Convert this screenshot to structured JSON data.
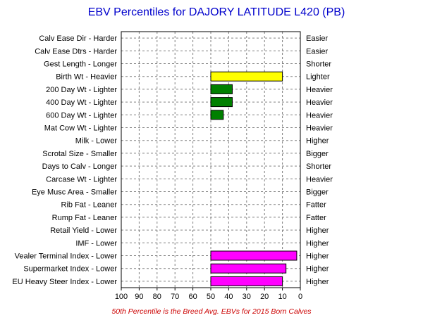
{
  "chart_data": {
    "type": "bar",
    "title": "EBV Percentiles for DAJORY LATITUDE L420 (PB)",
    "footnote": "50th Percentile is the Breed Avg. EBVs for 2015 Born Calves",
    "xlim": [
      100,
      0
    ],
    "x_ticks": [
      "100",
      "90",
      "80",
      "70",
      "60",
      "50",
      "40",
      "30",
      "20",
      "10",
      "0"
    ],
    "baseline": 50,
    "grid": true,
    "categories": [
      "Calv Ease Dir - Harder",
      "Calv Ease Dtrs - Harder",
      "Gest Length - Longer",
      "Birth Wt - Heavier",
      "200 Day Wt - Lighter",
      "400 Day Wt - Lighter",
      "600 Day Wt - Lighter",
      "Mat Cow Wt - Lighter",
      "Milk - Lower",
      "Scrotal Size - Smaller",
      "Days to Calv - Longer",
      "Carcase Wt - Lighter",
      "Eye Musc Area - Smaller",
      "Rib Fat - Leaner",
      "Rump Fat - Leaner",
      "Retail Yield - Lower",
      "IMF - Lower",
      "Vealer Terminal Index - Lower",
      "Supermarket Index - Lower",
      "EU Heavy Steer Index - Lower"
    ],
    "right_labels": [
      "Easier",
      "Easier",
      "Shorter",
      "Lighter",
      "Heavier",
      "Heavier",
      "Heavier",
      "Heavier",
      "Higher",
      "Bigger",
      "Shorter",
      "Heavier",
      "Bigger",
      "Fatter",
      "Fatter",
      "Higher",
      "Higher",
      "Higher",
      "Higher",
      "Higher"
    ],
    "values": [
      null,
      null,
      null,
      10,
      38,
      38,
      43,
      null,
      null,
      null,
      null,
      null,
      null,
      null,
      null,
      null,
      null,
      2,
      8,
      10
    ],
    "bar_colors": [
      null,
      null,
      null,
      "#ffff00",
      "#008000",
      "#008000",
      "#008000",
      null,
      null,
      null,
      null,
      null,
      null,
      null,
      null,
      null,
      null,
      "#ff00ff",
      "#ff00ff",
      "#ff00ff"
    ],
    "colors": {
      "title": "#0000cc",
      "footnote": "#cc0000",
      "grid": "#808080",
      "axis": "#000000"
    }
  }
}
